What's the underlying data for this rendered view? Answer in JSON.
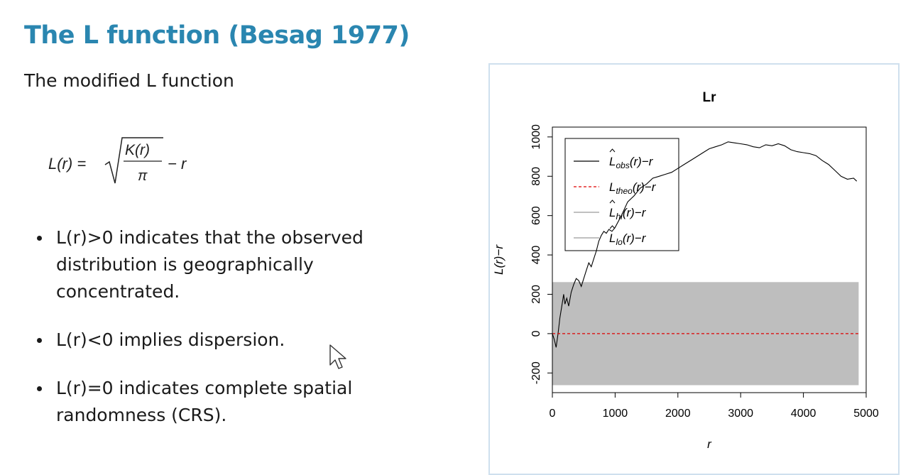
{
  "slide": {
    "title": "The L function (Besag 1977)",
    "subtitle": "The modified L function",
    "formula": {
      "lhs": "L(r) =",
      "numerator": "K(r)",
      "denominator": "π",
      "tail": "− r"
    },
    "bullets": [
      {
        "line1": "L(r)>0 indicates that the observed",
        "line2": "distribution is geographically",
        "line3": "concentrated."
      },
      {
        "line1": "L(r)<0 implies dispersion.",
        "line2": "",
        "line3": ""
      },
      {
        "line1": "L(r)=0 indicates complete spatial",
        "line2": "randomness (CRS).",
        "line3": ""
      }
    ]
  },
  "chart_data": {
    "type": "line",
    "title": "Lr",
    "xlabel": "r",
    "ylabel": "L(r)−r",
    "xlim": [
      0,
      5000
    ],
    "ylim": [
      -300,
      1050
    ],
    "xticks": [
      "0",
      "1000",
      "2000",
      "3000",
      "4000",
      "5000"
    ],
    "yticks": [
      "-200",
      "0",
      "200",
      "400",
      "600",
      "800",
      "1000"
    ],
    "legend_position": "top-left",
    "legend": [
      {
        "main": "L",
        "sub": "obs",
        "suffix": "(r)−r",
        "hat": true,
        "color": "#000000",
        "dash": false
      },
      {
        "main": "L",
        "sub": "theo",
        "suffix": "(r)−r",
        "hat": false,
        "color": "#df0000",
        "dash": true
      },
      {
        "main": "L",
        "sub": "hi",
        "suffix": "(r)−r",
        "hat": true,
        "color": "#9a9a9a",
        "dash": false
      },
      {
        "main": "L",
        "sub": "lo",
        "suffix": "(r)−r",
        "hat": true,
        "color": "#9a9a9a",
        "dash": false
      }
    ],
    "envelope": {
      "x": [
        0,
        4880
      ],
      "hi": 262,
      "lo": -262,
      "color": "#bebebe"
    },
    "series": [
      {
        "name": "obs",
        "color": "#000000",
        "x": [
          0,
          30,
          60,
          90,
          120,
          150,
          180,
          200,
          230,
          260,
          300,
          340,
          380,
          420,
          460,
          500,
          540,
          580,
          620,
          660,
          700,
          740,
          780,
          820,
          860,
          900,
          950,
          1000,
          1100,
          1200,
          1300,
          1400,
          1500,
          1600,
          1700,
          1800,
          1900,
          2000,
          2100,
          2200,
          2300,
          2400,
          2500,
          2600,
          2700,
          2800,
          2900,
          3000,
          3100,
          3200,
          3300,
          3400,
          3500,
          3600,
          3700,
          3800,
          3900,
          4000,
          4100,
          4200,
          4300,
          4400,
          4500,
          4600,
          4700,
          4800,
          4850
        ],
        "y": [
          0,
          -30,
          -70,
          0,
          80,
          140,
          200,
          150,
          180,
          140,
          210,
          250,
          280,
          270,
          240,
          280,
          320,
          360,
          340,
          380,
          420,
          470,
          500,
          520,
          510,
          530,
          520,
          540,
          600,
          670,
          700,
          740,
          760,
          790,
          800,
          810,
          820,
          840,
          860,
          880,
          900,
          920,
          940,
          950,
          960,
          975,
          970,
          965,
          960,
          950,
          945,
          960,
          955,
          965,
          955,
          935,
          925,
          920,
          915,
          905,
          880,
          860,
          830,
          800,
          785,
          790,
          775
        ]
      },
      {
        "name": "theo",
        "color": "#df0000",
        "dash": true,
        "x": [
          0,
          4880
        ],
        "y": [
          0,
          0
        ]
      }
    ]
  }
}
